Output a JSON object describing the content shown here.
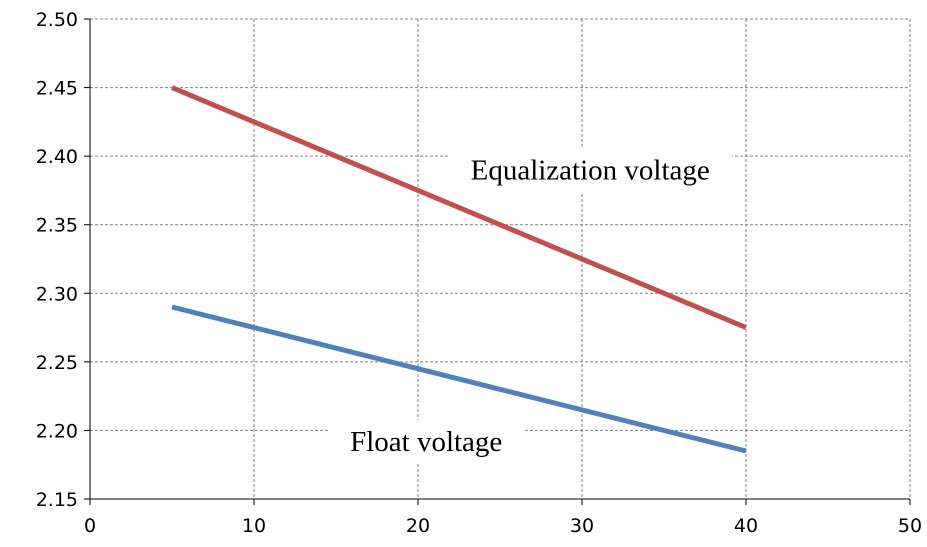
{
  "chart_data": {
    "type": "line",
    "title": "",
    "xlabel": "",
    "ylabel": "",
    "xlim": [
      0,
      50
    ],
    "ylim": [
      2.15,
      2.5
    ],
    "x_ticks": [
      0,
      10,
      20,
      30,
      40,
      50
    ],
    "y_ticks": [
      "2.15",
      "2.20",
      "2.25",
      "2.30",
      "2.35",
      "2.40",
      "2.45",
      "2.50"
    ],
    "grid": true,
    "grid_style": "dashed",
    "legend": "none",
    "series": [
      {
        "name": "Equalization voltage",
        "color": "#c0504d",
        "points": [
          [
            5,
            2.45
          ],
          [
            40,
            2.275
          ]
        ]
      },
      {
        "name": "Float voltage",
        "color": "#4f81bd",
        "points": [
          [
            5,
            2.29
          ],
          [
            40,
            2.185
          ]
        ]
      }
    ],
    "annotations": [
      {
        "text": "Equalization voltage",
        "series": 0,
        "x": 30.5,
        "y": 2.388
      },
      {
        "text": "Float voltage",
        "series": 1,
        "x": 20.5,
        "y": 2.19
      }
    ]
  }
}
